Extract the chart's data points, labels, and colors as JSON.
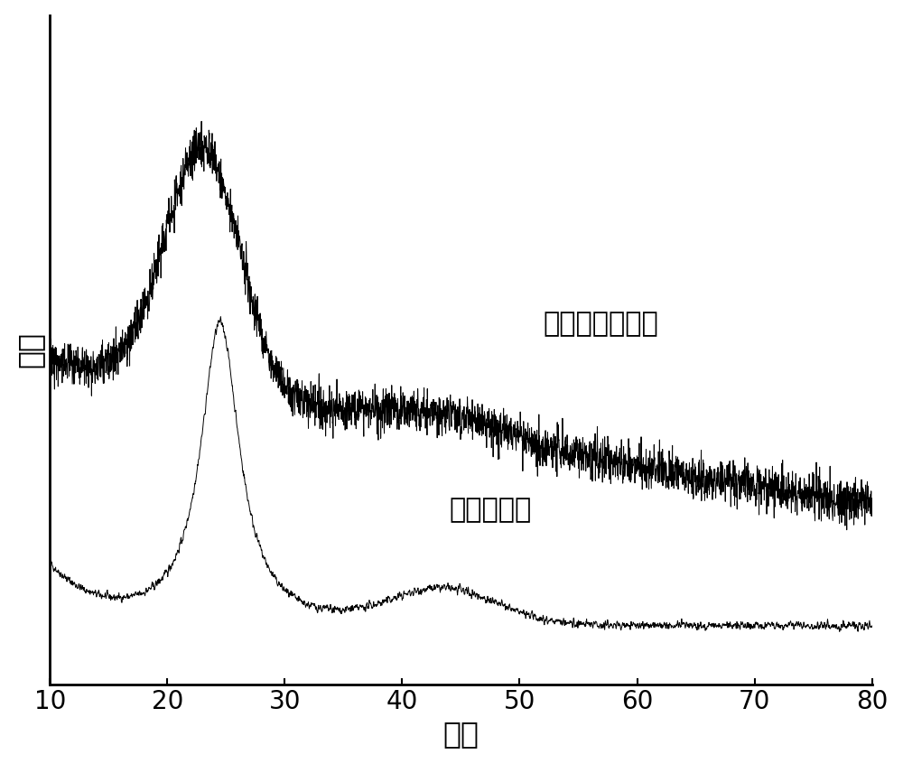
{
  "xlabel": "角度",
  "ylabel": "强度",
  "label_upper": "所述的复合材料",
  "label_lower": "纯的导电碳",
  "xmin": 10,
  "xmax": 80,
  "xticks": [
    10,
    20,
    30,
    40,
    50,
    60,
    70,
    80
  ],
  "line_color": "#000000",
  "background_color": "#ffffff",
  "xlabel_fontsize": 24,
  "ylabel_fontsize": 24,
  "tick_fontsize": 20,
  "label_fontsize": 22
}
